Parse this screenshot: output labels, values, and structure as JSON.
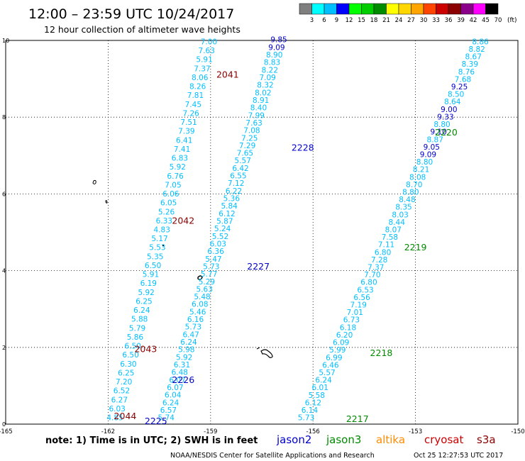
{
  "header": {
    "title": "12:00 – 23:59 UTC 10/24/2017",
    "subtitle": "12 hour collection of altimeter wave heights"
  },
  "colorbar": {
    "unit": "(ft)",
    "ticks": [
      "3",
      "6",
      "9",
      "12",
      "15",
      "18",
      "21",
      "24",
      "27",
      "30",
      "33",
      "36",
      "39",
      "42",
      "45",
      "70"
    ],
    "colors": [
      "#7f7f7f",
      "#00ffff",
      "#00bfff",
      "#0000ff",
      "#00ff00",
      "#00cd00",
      "#008b00",
      "#ffff00",
      "#ffd700",
      "#ffa500",
      "#ff4500",
      "#cd0000",
      "#8b0000",
      "#8b008b",
      "#ff00ff",
      "#000000"
    ]
  },
  "footer": {
    "note": "note: 1) Time is in UTC; 2) SWH is in feet",
    "legend": [
      {
        "label": "jason2",
        "color": "#0000cc"
      },
      {
        "label": "jason3",
        "color": "#008b00"
      },
      {
        "label": "altika",
        "color": "#ff8c00"
      },
      {
        "label": "cryosat",
        "color": "#cc0000"
      },
      {
        "label": "s3a",
        "color": "#8b0000"
      }
    ],
    "credit": "NOAA/NESDIS Center for Satellite Applications and Research",
    "timestamp": "Oct 25 12:27:53 UTC 2017"
  },
  "chart_data": {
    "type": "scatter",
    "xlim": [
      -165,
      -150
    ],
    "ylim": [
      0,
      10
    ],
    "x_ticks": [
      "-165",
      "-162",
      "-159",
      "-156",
      "-153",
      "-150"
    ],
    "y_ticks": [
      "0",
      "2",
      "4",
      "6",
      "8",
      "10"
    ],
    "grid": true,
    "series": [
      {
        "name": "track A",
        "color": "#00bfff",
        "start": [
          -159.05,
          9.9
        ],
        "end": [
          -161.8,
          0.1
        ],
        "labels": [
          "7.00",
          "7.63",
          "5.91",
          "7.37",
          "8.06",
          "8.26",
          "7.81",
          "7.45",
          "7.26",
          "7.51",
          "7.39",
          "6.41",
          "7.41",
          "6.83",
          "5.92",
          "6.76",
          "7.05",
          "6.06",
          "6.05",
          "5.26",
          "6.33",
          "4.83",
          "5.17",
          "5.53",
          "5.35",
          "6.50",
          "5.91",
          "6.19",
          "5.92",
          "6.25",
          "6.24",
          "5.88",
          "5.79",
          "5.86",
          "6.50",
          "6.50",
          "6.30",
          "6.25",
          "7.20",
          "6.52",
          "6.27",
          "6.03",
          "4.85"
        ]
      },
      {
        "name": "track B",
        "color": "#00bfff",
        "start": [
          -157.0,
          9.95
        ],
        "end": [
          -160.3,
          0.1
        ],
        "labels": [
          "9.85",
          "9.09",
          "8.90",
          "8.83",
          "8.22",
          "7.09",
          "8.32",
          "8.02",
          "8.91",
          "8.40",
          "7.99",
          "7.63",
          "7.08",
          "7.25",
          "7.29",
          "7.65",
          "5.57",
          "6.42",
          "6.55",
          "7.12",
          "6.22",
          "5.36",
          "5.84",
          "6.12",
          "5.87",
          "5.24",
          "5.52",
          "6.03",
          "6.36",
          "5.47",
          "5.73",
          "5.77",
          "5.29",
          "5.63",
          "5.48",
          "6.08",
          "5.46",
          "6.16",
          "5.73",
          "6.47",
          "6.24",
          "5.98",
          "5.92",
          "6.31",
          "6.48",
          "6.07",
          "6.07",
          "6.04",
          "6.24",
          "6.57",
          "5.74"
        ]
      },
      {
        "name": "track C",
        "color": "#00bfff",
        "start": [
          -151.1,
          9.9
        ],
        "end": [
          -156.2,
          0.1
        ],
        "labels": [
          "8.86",
          "8.82",
          "8.67",
          "8.39",
          "8.76",
          "7.68",
          "9.25",
          "8.50",
          "8.64",
          "9.00",
          "9.33",
          "8.80",
          "9.10",
          "8.87",
          "9.05",
          "9.09",
          "8.80",
          "8.21",
          "8.08",
          "8.70",
          "8.80",
          "8.48",
          "8.35",
          "8.03",
          "8.44",
          "8.07",
          "7.58",
          "7.11",
          "6.80",
          "7.28",
          "7.37",
          "7.70",
          "6.80",
          "6.53",
          "6.56",
          "7.19",
          "7.01",
          "6.73",
          "6.18",
          "6.20",
          "6.09",
          "5.99",
          "6.99",
          "6.46",
          "5.57",
          "6.24",
          "6.01",
          "5.58",
          "6.12",
          "6.14",
          "5.73"
        ]
      }
    ],
    "pass_labels": [
      {
        "text": "2041",
        "x": -158.5,
        "y": 9.1,
        "color": "#8b0000"
      },
      {
        "text": "2228",
        "x": -156.3,
        "y": 7.2,
        "color": "#0000cc"
      },
      {
        "text": "2042",
        "x": -159.8,
        "y": 5.3,
        "color": "#8b0000"
      },
      {
        "text": "2227",
        "x": -157.6,
        "y": 4.1,
        "color": "#0000cc"
      },
      {
        "text": "2043",
        "x": -160.9,
        "y": 1.95,
        "color": "#8b0000"
      },
      {
        "text": "2226",
        "x": -159.8,
        "y": 1.15,
        "color": "#0000cc"
      },
      {
        "text": "2044",
        "x": -161.5,
        "y": 0.2,
        "color": "#8b0000"
      },
      {
        "text": "2225",
        "x": -160.6,
        "y": 0.07,
        "color": "#0000cc"
      },
      {
        "text": "2220",
        "x": -152.1,
        "y": 7.6,
        "color": "#008b00"
      },
      {
        "text": "2219",
        "x": -153.0,
        "y": 4.6,
        "color": "#008b00"
      },
      {
        "text": "2218",
        "x": -154.0,
        "y": 1.85,
        "color": "#008b00"
      },
      {
        "text": "2217",
        "x": -154.7,
        "y": 0.13,
        "color": "#008b00"
      }
    ]
  }
}
